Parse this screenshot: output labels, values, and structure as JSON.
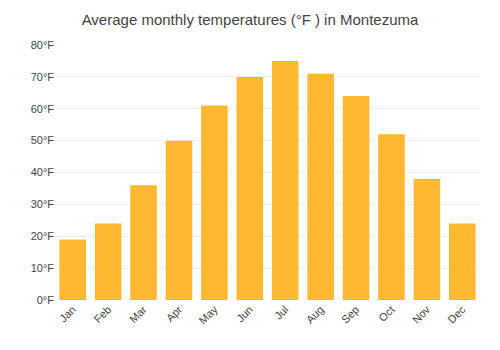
{
  "chart_data": {
    "type": "bar",
    "title": "Average monthly temperatures (°F ) in Montezuma",
    "categories": [
      "Jan",
      "Feb",
      "Mar",
      "Apr",
      "May",
      "Jun",
      "Jul",
      "Aug",
      "Sep",
      "Oct",
      "Nov",
      "Dec"
    ],
    "values": [
      19,
      24,
      36,
      50,
      61,
      70,
      75,
      71,
      64,
      52,
      38,
      24
    ],
    "color": "#FFB830",
    "ylim": [
      0,
      80
    ],
    "yticks": [
      {
        "value": 0,
        "label": "0°F"
      },
      {
        "value": 10,
        "label": "10°F"
      },
      {
        "value": 20,
        "label": "20°F"
      },
      {
        "value": 30,
        "label": "30°F"
      },
      {
        "value": 40,
        "label": "40°F"
      },
      {
        "value": 50,
        "label": "50°F"
      },
      {
        "value": 60,
        "label": "60°F"
      },
      {
        "value": 70,
        "label": "70°F"
      },
      {
        "value": 80,
        "label": "80°F"
      }
    ],
    "grid": true
  }
}
